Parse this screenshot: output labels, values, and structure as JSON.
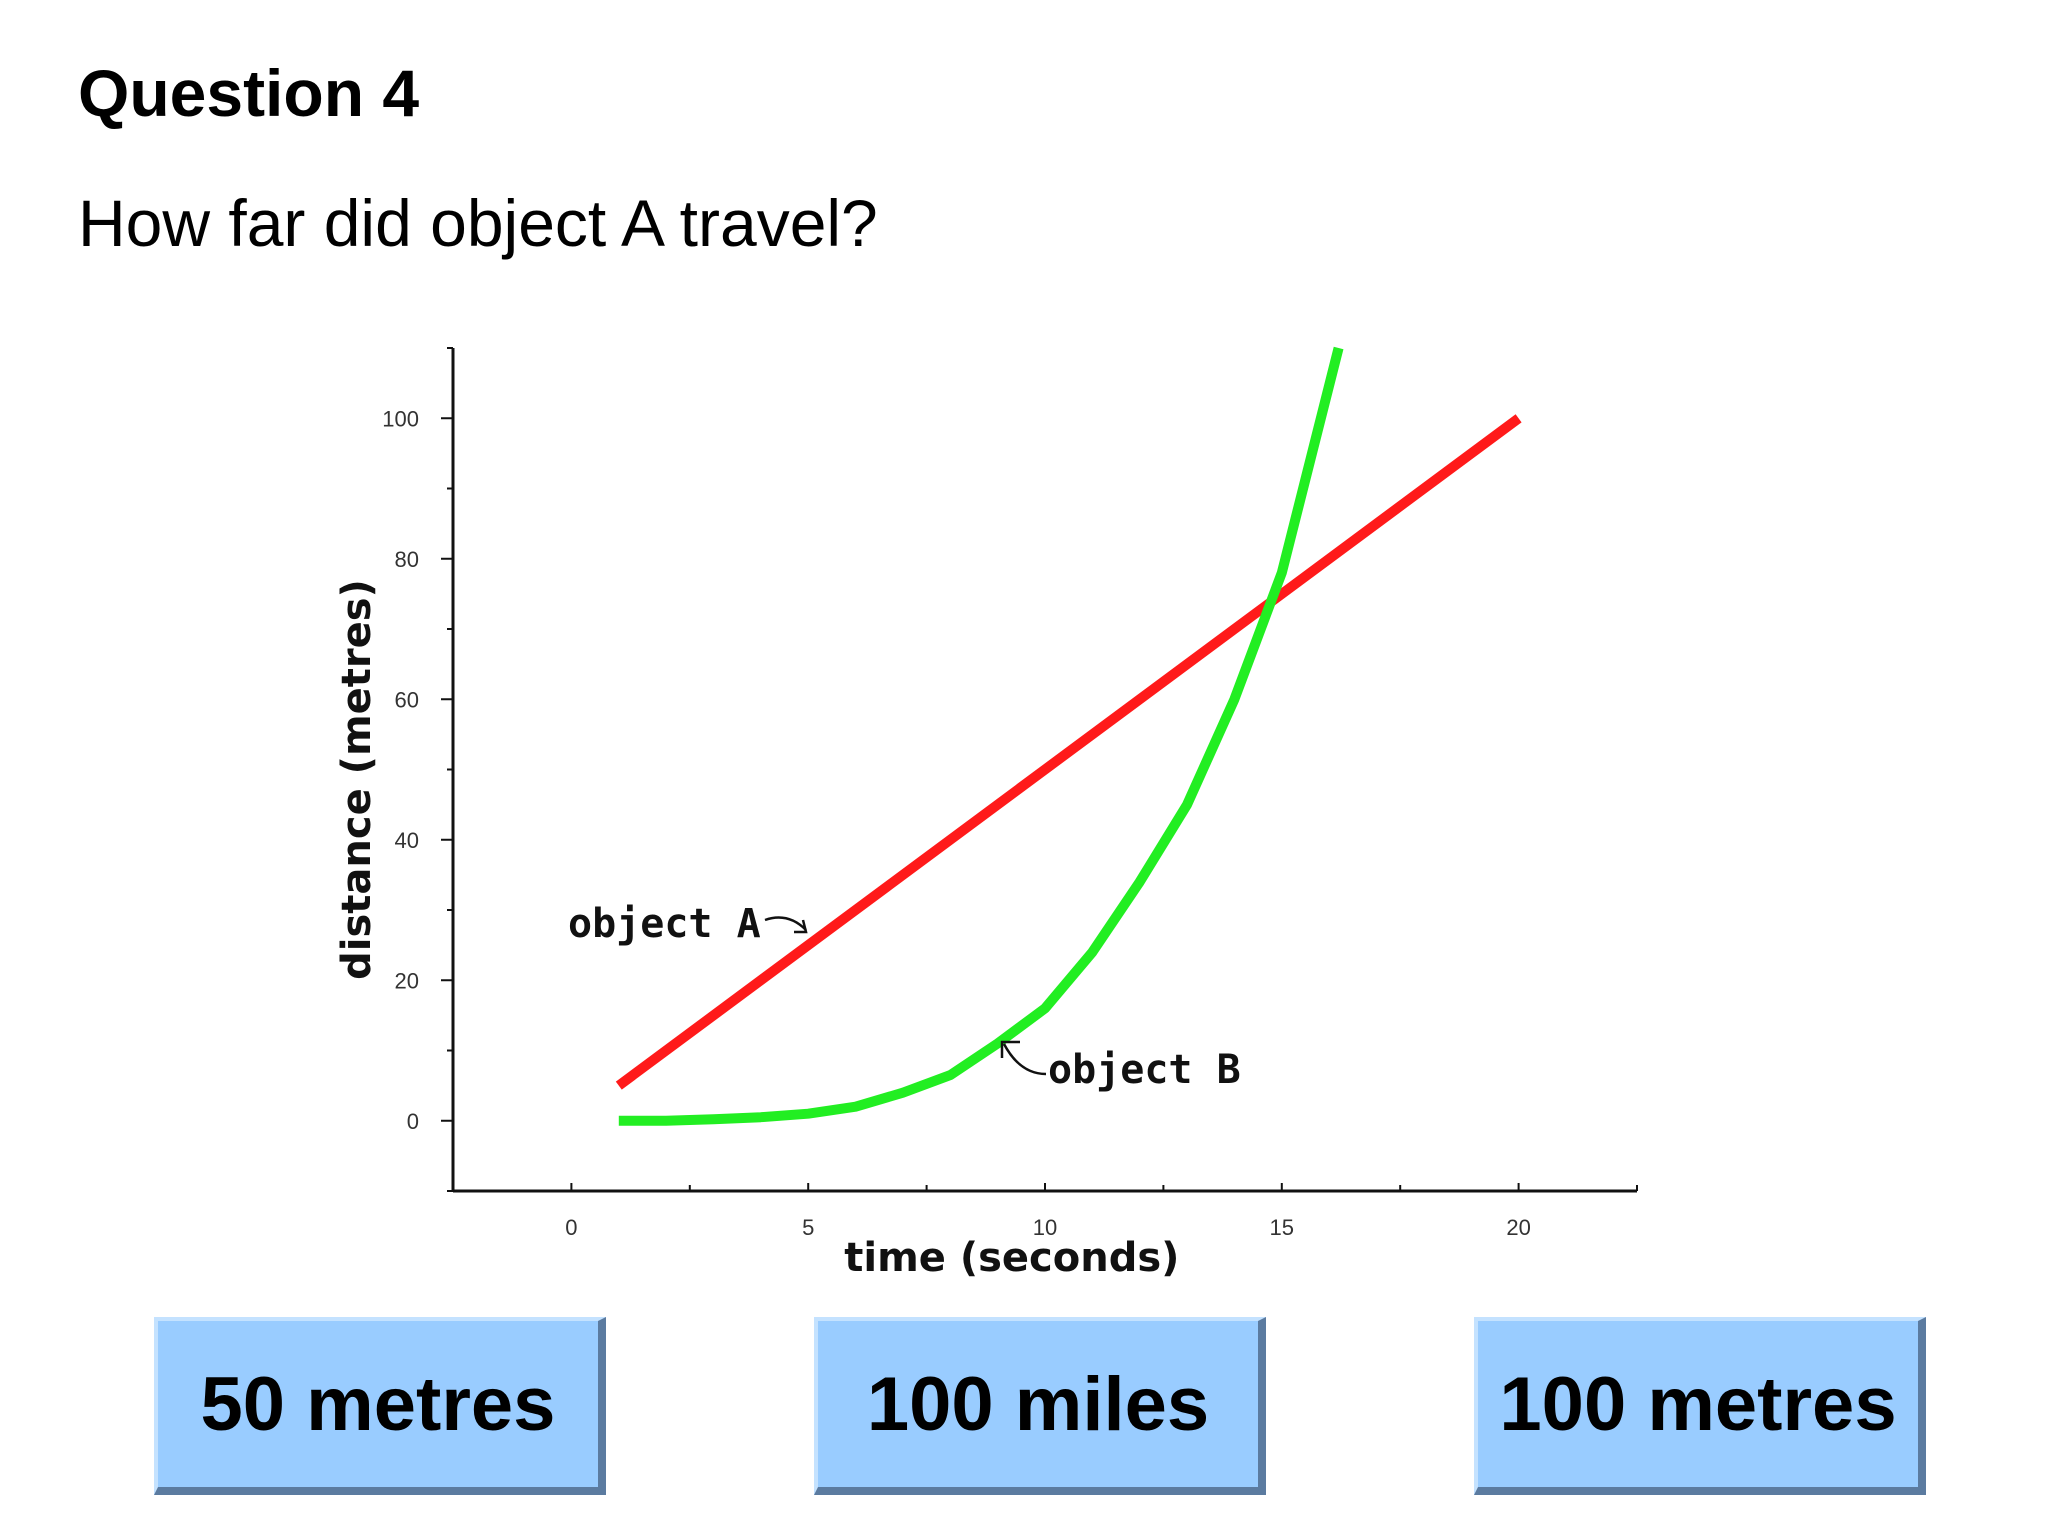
{
  "header": {
    "title": "Question 4",
    "question": "How far did object A travel?"
  },
  "answers": [
    {
      "label": "50 metres"
    },
    {
      "label": "100 miles"
    },
    {
      "label": "100 metres"
    }
  ],
  "colors": {
    "object_a": "#ff1a1a",
    "object_b": "#22ee22",
    "button_fill": "#99ccff",
    "button_shadow": "#5b7ba0"
  },
  "chart_data": {
    "type": "line",
    "xlabel": "time (seconds)",
    "ylabel": "distance (metres)",
    "xlim": [
      -2.5,
      22.5
    ],
    "ylim": [
      -10,
      110
    ],
    "x_ticks": [
      0,
      5,
      10,
      15,
      20
    ],
    "y_ticks": [
      0,
      20,
      40,
      60,
      80,
      100
    ],
    "grid": false,
    "series": [
      {
        "name": "object A",
        "x": [
          1,
          20
        ],
        "y": [
          5,
          100
        ]
      },
      {
        "name": "object B",
        "x": [
          1,
          2,
          3,
          4,
          5,
          6,
          7,
          8,
          9,
          10,
          11,
          12,
          13,
          14,
          15,
          16.2
        ],
        "y": [
          0,
          0,
          0.2,
          0.5,
          1,
          2,
          4,
          6.5,
          11,
          16,
          24,
          34,
          45,
          60,
          78,
          110
        ]
      }
    ],
    "annotations": [
      {
        "text": "object A",
        "target_series": 0
      },
      {
        "text": "object B",
        "target_series": 1
      }
    ]
  }
}
